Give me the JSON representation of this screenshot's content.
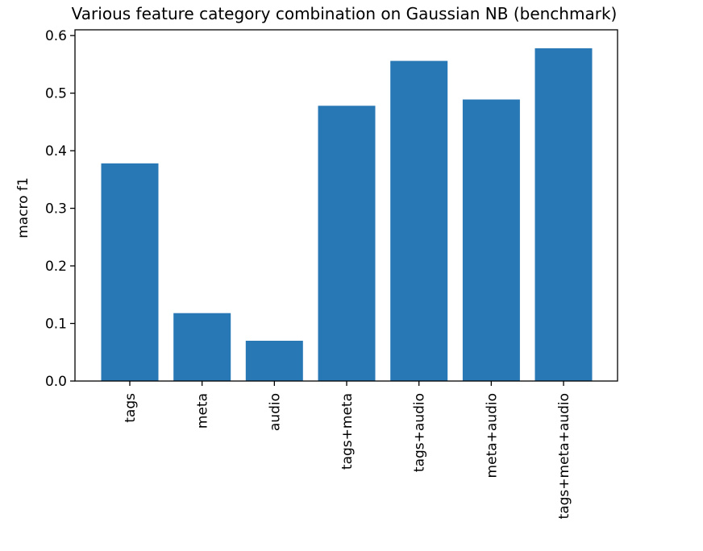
{
  "chart_data": {
    "type": "bar",
    "title": "Various feature category combination on Gaussian NB (benchmark)",
    "xlabel": "",
    "ylabel": "macro f1",
    "categories": [
      "tags",
      "meta",
      "audio",
      "tags+meta",
      "tags+audio",
      "meta+audio",
      "tags+meta+audio"
    ],
    "values": [
      0.378,
      0.118,
      0.07,
      0.478,
      0.556,
      0.489,
      0.578
    ],
    "ylim": [
      0,
      0.61
    ],
    "yticks": [
      0.0,
      0.1,
      0.2,
      0.3,
      0.4,
      0.5,
      0.6
    ],
    "ytick_labels": [
      "0.0",
      "0.1",
      "0.2",
      "0.3",
      "0.4",
      "0.5",
      "0.6"
    ],
    "bar_color": "#2878b5",
    "grid": false,
    "legend": false
  }
}
